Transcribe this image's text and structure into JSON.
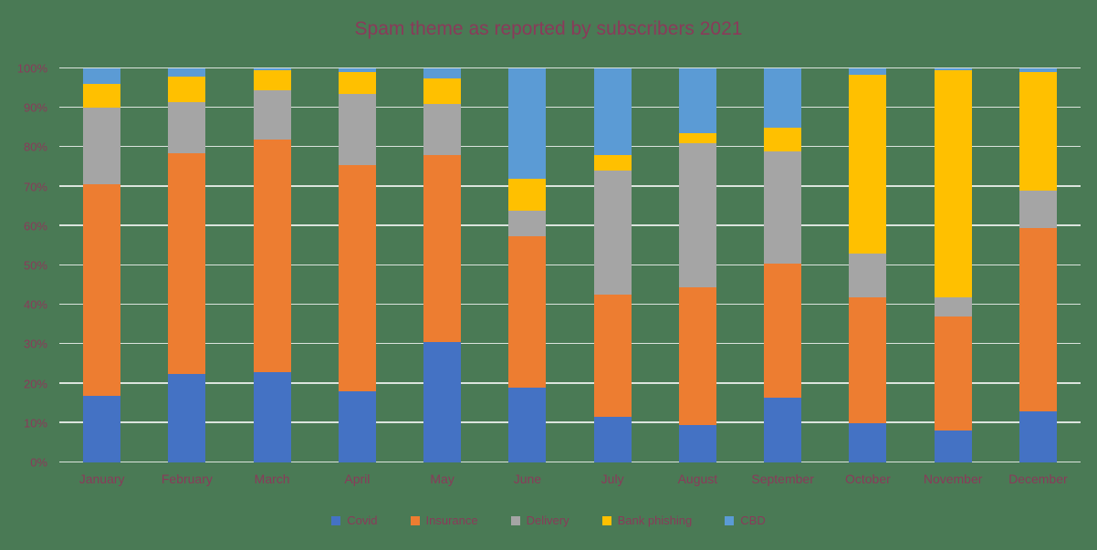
{
  "chart_data": {
    "type": "bar",
    "subtype": "stacked-100-percent",
    "title": "Spam theme as reported by subscribers 2021",
    "categories": [
      "January",
      "February",
      "March",
      "April",
      "May",
      "June",
      "July",
      "August",
      "September",
      "October",
      "November",
      "December"
    ],
    "series": [
      {
        "name": "Covid",
        "color": "#4472c4",
        "values": [
          17,
          22.5,
          23,
          18,
          30.5,
          19,
          11.5,
          9.5,
          16.5,
          10,
          8,
          13
        ]
      },
      {
        "name": "Insurance",
        "color": "#ed7d31",
        "values": [
          53.5,
          56,
          59,
          57.5,
          47.5,
          38.5,
          31,
          35,
          34,
          32,
          29,
          46.5
        ]
      },
      {
        "name": "Delivery",
        "color": "#a5a5a5",
        "values": [
          19.5,
          13,
          12.5,
          18,
          13,
          6.5,
          31.5,
          36.5,
          28.5,
          11,
          5,
          9.5
        ]
      },
      {
        "name": "Bank phishing",
        "color": "#ffc000",
        "values": [
          6,
          6.5,
          5,
          5.5,
          6.5,
          8,
          4,
          2.5,
          6,
          45.5,
          57.5,
          30
        ]
      },
      {
        "name": "CBD",
        "color": "#5b9bd5",
        "values": [
          4,
          2,
          0.5,
          1,
          2.5,
          28,
          22,
          16.5,
          15,
          1.5,
          0.5,
          1
        ]
      }
    ],
    "y_ticks": [
      "0%",
      "10%",
      "20%",
      "30%",
      "40%",
      "50%",
      "60%",
      "70%",
      "80%",
      "90%",
      "100%"
    ],
    "ylim": [
      0,
      100
    ],
    "grid": true,
    "legend_position": "bottom"
  },
  "colors": {
    "background": "#4a7a55",
    "text": "#8a3a5a",
    "gridline": "#ffffff"
  }
}
